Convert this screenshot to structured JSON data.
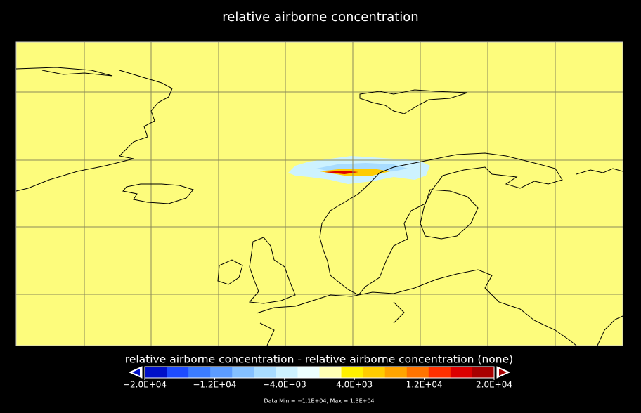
{
  "title": "relative airborne concentration",
  "colorbar": {
    "label": "relative airborne concentration - relative airborne concentration  (none)",
    "lim": [
      -20000,
      20000
    ],
    "ticks": [
      {
        "value": -20000,
        "label": "−2.0E+04"
      },
      {
        "value": -12000,
        "label": "−1.2E+04"
      },
      {
        "value": -4000,
        "label": "−4.0E+03"
      },
      {
        "value": 4000,
        "label": "4.0E+03"
      },
      {
        "value": 12000,
        "label": "1.2E+04"
      },
      {
        "value": 20000,
        "label": "2.0E+04"
      }
    ],
    "colors": [
      "#0010c8",
      "#1e4cff",
      "#3c7cff",
      "#5c9cff",
      "#84c0ff",
      "#a8dcff",
      "#cdf2ff",
      "#ecffff",
      "#ffffb4",
      "#fff000",
      "#ffcc00",
      "#ffa400",
      "#ff7400",
      "#ff3000",
      "#dc0000",
      "#a80000"
    ]
  },
  "footer": "Data Min = −1.1E+04, Max = 1.3E+04"
}
